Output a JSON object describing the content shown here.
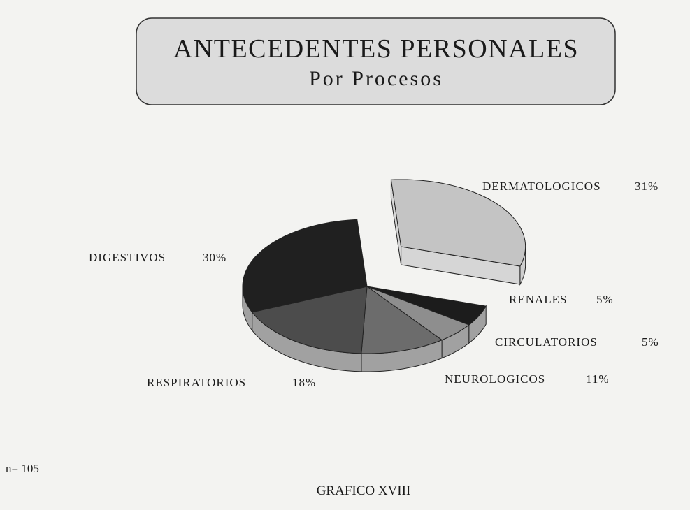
{
  "chart_data": {
    "type": "pie",
    "title": "ANTECEDENTES PERSONALES",
    "subtitle": "Por Procesos",
    "categories": [
      "DERMATOLOGICOS",
      "RENALES",
      "CIRCULATORIOS",
      "NEUROLOGICOS",
      "RESPIRATORIOS",
      "DIGESTIVOS"
    ],
    "values": [
      31,
      5,
      5,
      11,
      18,
      30
    ],
    "value_labels": [
      "31%",
      "5%",
      "5%",
      "11%",
      "18%",
      "30%"
    ],
    "colors": [
      "#c4c4c4",
      "#1c1c1c",
      "#8e8e8e",
      "#6c6c6c",
      "#4c4c4c",
      "#202020"
    ],
    "exploded": "DERMATOLOGICOS",
    "annotations": [
      "n= 105"
    ],
    "caption": "GRAFICO XVIII"
  }
}
